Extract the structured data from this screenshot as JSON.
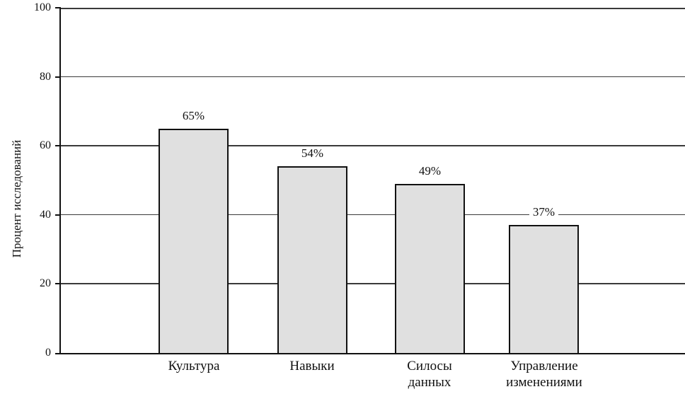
{
  "chart_data": {
    "type": "bar",
    "title": "",
    "categories": [
      "Культура",
      "Навыки",
      "Силосы данных",
      "Управление изменениями"
    ],
    "category_labels_display": [
      "Культура",
      "Навыки",
      "Силосы\nданных",
      "Управление\nизменениями"
    ],
    "values": [
      65,
      54,
      49,
      37
    ],
    "value_labels": [
      "65%",
      "54%",
      "49%",
      "37%"
    ],
    "xlabel": "",
    "ylabel": "Процент исследований",
    "ylim": [
      0,
      100
    ],
    "yticks": [
      0,
      20,
      40,
      60,
      80,
      100
    ],
    "ytick_labels": [
      "0",
      "20",
      "40",
      "60",
      "80",
      "100"
    ],
    "grid": "horizontal",
    "legend": "none",
    "bar_fill_color": "#e0e0e0",
    "bar_border_color": "#111111",
    "gridline_color": "#3a3a3a",
    "background_color": "#ffffff"
  }
}
